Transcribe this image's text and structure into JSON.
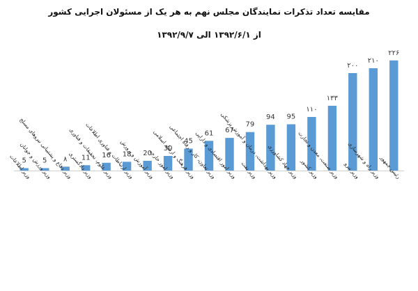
{
  "chart_data": {
    "type": "bar",
    "title": "مقایسه تعداد تذکرات نمایندگان مجلس نهم به هر یک از مسئولان اجرایی کشور",
    "subtitle": "از ۱۳۹۲/۶/۱ الی ۱۳۹۲/۹/۷",
    "xlabel": "",
    "ylabel": "",
    "ylim": [
      0,
      250
    ],
    "grid": false,
    "legend": "none",
    "bar_color": "#5b9bd5",
    "categories": [
      "رئیس جمهور",
      "وزیر راه و شهرسازی",
      "وزیر نیرو",
      "وزیر صنعت، معدن و تجارت",
      "وزیر کشور",
      "وزیر جهاد کشاورزی",
      "وزیر بهداشت، درمان و آموزش پزشکی",
      "وزیر نفت",
      "وزیر امور اقتصادی و دارایی",
      "وزیر تعاون، کار و رفاه اجتماعی",
      "وزیر فرهنگ و ارشاد اسلامی",
      "وزیر امور خارجه",
      "وزیر آموزش و پرورش",
      "وزیر ارتباطات و فناوری اطلاعات",
      "وزیر علوم، تحقیقات و فناوری",
      "وزیر دادگستری",
      "وزیر دفاع و پشتیبانی نیروهای مسلح",
      "وزیر ورزش و جوانان",
      "وزیر اطلاعات"
    ],
    "values": [
      226,
      210,
      200,
      133,
      110,
      95,
      94,
      79,
      67,
      61,
      45,
      30,
      20,
      18,
      16,
      11,
      8,
      5,
      5
    ],
    "value_labels": [
      "۲۲۶",
      "۲۱۰",
      "۲۰۰",
      "۱۳۳",
      "۱۱۰",
      "95",
      "94",
      "79",
      "67",
      "61",
      "45",
      "30",
      "20",
      "18",
      "16",
      "11",
      "۸",
      "5",
      "5"
    ]
  }
}
